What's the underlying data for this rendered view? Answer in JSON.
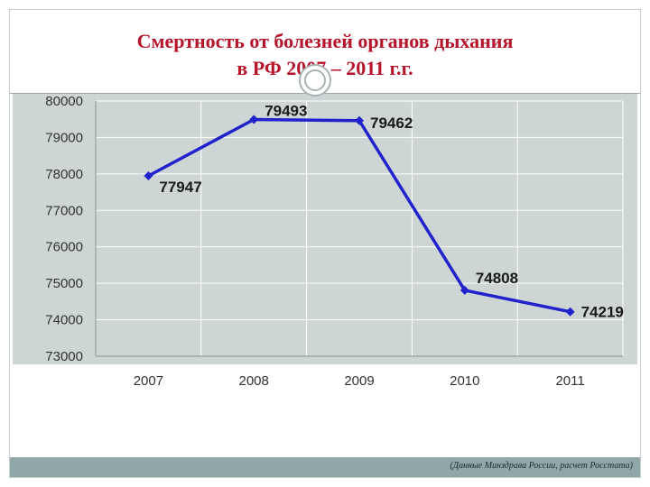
{
  "title_line1": "Смертность от болезней органов дыхания",
  "title_line2": "в РФ 2007 – 2011 г.г.",
  "footer_note": "(Данные Минздрава России, расчет Росстата)",
  "chart_data": {
    "type": "line",
    "title": "Смертность от болезней органов дыхания в РФ 2007 – 2011 г.г.",
    "xlabel": "",
    "ylabel": "",
    "categories": [
      "2007",
      "2008",
      "2009",
      "2010",
      "2011"
    ],
    "series": [
      {
        "values": [
          77947,
          79493,
          79462,
          74808,
          74219
        ]
      }
    ],
    "data_labels": [
      "77947",
      "79493",
      "79462",
      "74808",
      "74219"
    ],
    "ylim": [
      73000,
      80000
    ],
    "yticks": [
      73000,
      74000,
      75000,
      76000,
      77000,
      78000,
      79000,
      80000
    ],
    "ytick_labels": [
      "73000",
      "74000",
      "75000",
      "76000",
      "77000",
      "78000",
      "79000",
      "80000"
    ],
    "grid": true,
    "legend": "none",
    "colors": {
      "line": "#2222cc",
      "plot_bg": "#cdd5d5",
      "grid": "#ffffff"
    }
  }
}
